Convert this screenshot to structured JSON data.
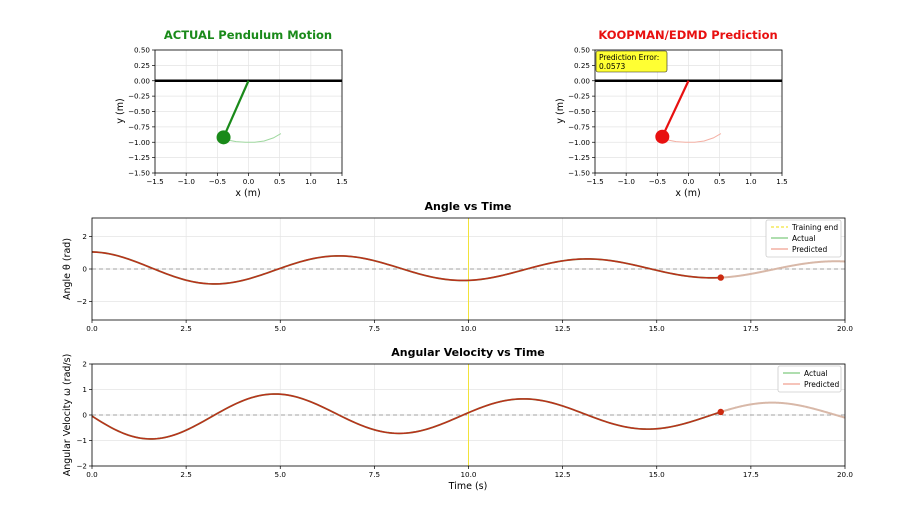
{
  "figure": {
    "colors": {
      "actual_green": "#1a8a1a",
      "predicted_red": "#e81010",
      "curve_red": "#b8321c",
      "actual_line": "#7fc97f",
      "predicted_line": "#f0a090",
      "training_end": "#f2e33a",
      "axis": "#000000",
      "grid": "#e4e4e4",
      "error_box": "#ffff33"
    }
  },
  "chart_data": [
    {
      "id": "actual",
      "type": "scatter",
      "title": "ACTUAL Pendulum Motion",
      "xlabel": "x (m)",
      "ylabel": "y (m)",
      "xlim": [
        -1.5,
        1.5
      ],
      "ylim": [
        -1.5,
        0.5
      ],
      "xticks": [
        "−1.5",
        "−1.0",
        "−0.5",
        "0.0",
        "0.5",
        "1.0",
        "1.5"
      ],
      "yticks": [
        "0.50",
        "0.25",
        "0.00",
        "−0.25",
        "−0.50",
        "−0.75",
        "−1.00",
        "−1.25",
        "−1.50"
      ],
      "pivot": [
        0,
        0
      ],
      "bob": [
        -0.4,
        -0.92
      ],
      "trail": [
        [
          -0.35,
          -0.96
        ],
        [
          -0.2,
          -0.99
        ],
        [
          -0.05,
          -1.0
        ],
        [
          0.1,
          -1.0
        ],
        [
          0.25,
          -0.98
        ],
        [
          0.4,
          -0.93
        ],
        [
          0.52,
          -0.86
        ]
      ]
    },
    {
      "id": "predicted",
      "type": "scatter",
      "title": "KOOPMAN/EDMD Prediction",
      "xlabel": "x (m)",
      "ylabel": "y (m)",
      "xlim": [
        -1.5,
        1.5
      ],
      "ylim": [
        -1.5,
        0.5
      ],
      "xticks": [
        "−1.5",
        "−1.0",
        "−0.5",
        "0.0",
        "0.5",
        "1.0",
        "1.5"
      ],
      "yticks": [
        "0.50",
        "0.25",
        "0.00",
        "−0.25",
        "−0.50",
        "−0.75",
        "−1.00",
        "−1.25",
        "−1.50"
      ],
      "pivot": [
        0,
        0
      ],
      "bob": [
        -0.42,
        -0.91
      ],
      "trail": [
        [
          -0.35,
          -0.96
        ],
        [
          -0.2,
          -0.99
        ],
        [
          -0.05,
          -1.0
        ],
        [
          0.1,
          -1.0
        ],
        [
          0.25,
          -0.98
        ],
        [
          0.4,
          -0.93
        ],
        [
          0.52,
          -0.86
        ]
      ],
      "annotation_label": "Prediction Error:",
      "annotation_value": "0.0573"
    },
    {
      "id": "angle",
      "type": "line",
      "title": "Angle vs Time",
      "xlabel": "",
      "ylabel": "Angle θ (rad)",
      "xlim": [
        0,
        20
      ],
      "ylim": [
        -3.14,
        3.14
      ],
      "xticks": [
        "0.0",
        "2.5",
        "5.0",
        "7.5",
        "10.0",
        "12.5",
        "15.0",
        "17.5",
        "20.0"
      ],
      "xtick_values": [
        0,
        2.5,
        5,
        7.5,
        10,
        12.5,
        15,
        17.5,
        20
      ],
      "yticks": [
        "2",
        "0",
        "−2"
      ],
      "ytick_values": [
        2,
        0,
        -2
      ],
      "training_end": 10,
      "current_time": 16.7,
      "model": {
        "A": 1.05,
        "decay": 0.04,
        "omega": 0.952,
        "phase": 0
      },
      "legend": [
        "Training end",
        "Actual",
        "Predicted"
      ]
    },
    {
      "id": "velocity",
      "type": "line",
      "title": "Angular Velocity vs Time",
      "xlabel": "Time (s)",
      "ylabel": "Angular Velocity ω (rad/s)",
      "xlim": [
        0,
        20
      ],
      "ylim": [
        -2,
        2
      ],
      "xticks": [
        "0.0",
        "2.5",
        "5.0",
        "7.5",
        "10.0",
        "12.5",
        "15.0",
        "17.5",
        "20.0"
      ],
      "xtick_values": [
        0,
        2.5,
        5,
        7.5,
        10,
        12.5,
        15,
        17.5,
        20
      ],
      "yticks": [
        "2",
        "1",
        "0",
        "−1",
        "−2"
      ],
      "ytick_values": [
        2,
        1,
        0,
        -1,
        -2
      ],
      "training_end": 10,
      "current_time": 16.7,
      "model": {
        "A": 1.05,
        "decay": 0.04,
        "omega": 0.952,
        "phase": 0
      },
      "legend": [
        "Actual",
        "Predicted"
      ]
    }
  ]
}
